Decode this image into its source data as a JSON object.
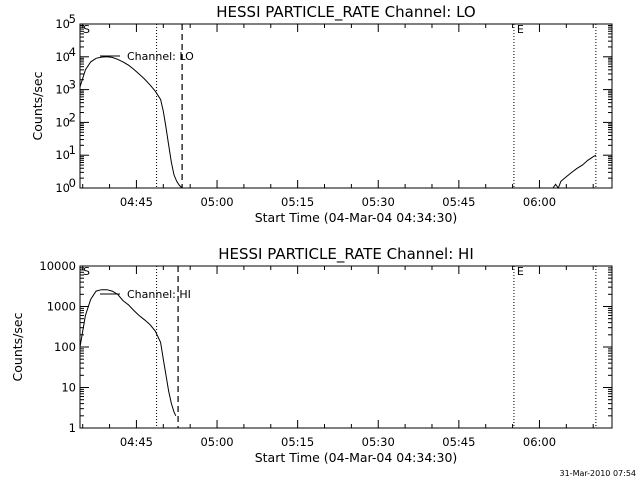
{
  "footer": {
    "timestamp": "31-Mar-2010 07:54"
  },
  "chart_data": [
    {
      "type": "line",
      "title": "HESSI PARTICLE_RATE Channel: LO",
      "xlabel": "Start Time (04-Mar-04 04:34:30)",
      "ylabel": "Counts/sec",
      "yscale": "log",
      "ylim": [
        1,
        100000
      ],
      "xlim": [
        "04:34:30",
        "06:13:30"
      ],
      "x_ticks": [
        "04:45",
        "05:00",
        "05:15",
        "05:30",
        "05:45",
        "06:00"
      ],
      "y_ticks": [
        {
          "value": 1,
          "mantissa": "10",
          "exp": "0"
        },
        {
          "value": 10,
          "mantissa": "10",
          "exp": "1"
        },
        {
          "value": 100,
          "mantissa": "10",
          "exp": "2"
        },
        {
          "value": 1000,
          "mantissa": "10",
          "exp": "3"
        },
        {
          "value": 10000,
          "mantissa": "10",
          "exp": "4"
        },
        {
          "value": 100000,
          "mantissa": "10",
          "exp": "5"
        }
      ],
      "legend": "Channel: LO",
      "markers": [
        {
          "label": "S",
          "time": "04:34:30",
          "style": "none"
        },
        {
          "label": "",
          "time": "04:48:45",
          "style": "dotted"
        },
        {
          "label": "",
          "time": "04:53:30",
          "style": "dashed"
        },
        {
          "label": "E",
          "time": "05:55:15",
          "style": "dotted"
        },
        {
          "label": "",
          "time": "06:10:30",
          "style": "dotted"
        }
      ],
      "series": [
        {
          "x": [
            "04:34:30",
            "04:35:30",
            "04:36:30",
            "04:37:30",
            "04:38:30",
            "04:39:30",
            "04:40:30",
            "04:41:30",
            "04:42:30",
            "04:43:30",
            "04:44:30",
            "04:45:30",
            "04:46:30",
            "04:47:30",
            "04:48:30",
            "04:49:30",
            "04:50:00",
            "04:50:30",
            "04:51:00",
            "04:51:30",
            "04:52:00",
            "04:52:30",
            "04:53:00",
            "04:53:30"
          ],
          "y": [
            1200,
            4000,
            7000,
            9000,
            9800,
            10000,
            9600,
            8400,
            7000,
            5600,
            4200,
            3000,
            2100,
            1400,
            900,
            500,
            220,
            70,
            20,
            6,
            2.5,
            1.6,
            1.2,
            1
          ]
        },
        {
          "x": [
            "06:02:30",
            "06:03:00",
            "06:03:30",
            "06:04:00",
            "06:05:00",
            "06:06:00",
            "06:07:00",
            "06:08:00",
            "06:09:00",
            "06:10:00",
            "06:10:30"
          ],
          "y": [
            1,
            1.3,
            1,
            1.6,
            2.2,
            3,
            4,
            5,
            7,
            9,
            10
          ]
        }
      ]
    },
    {
      "type": "line",
      "title": "HESSI PARTICLE_RATE Channel: HI",
      "xlabel": "Start Time (04-Mar-04 04:34:30)",
      "ylabel": "Counts/sec",
      "yscale": "log",
      "ylim": [
        1,
        10000
      ],
      "xlim": [
        "04:34:30",
        "06:13:30"
      ],
      "x_ticks": [
        "04:45",
        "05:00",
        "05:15",
        "05:30",
        "05:45",
        "06:00"
      ],
      "y_ticks": [
        {
          "value": 1,
          "label": "1"
        },
        {
          "value": 10,
          "label": "10"
        },
        {
          "value": 100,
          "label": "100"
        },
        {
          "value": 1000,
          "label": "1000"
        },
        {
          "value": 10000,
          "label": "10000"
        }
      ],
      "legend": "Channel: HI",
      "markers": [
        {
          "label": "S",
          "time": "04:34:30",
          "style": "none"
        },
        {
          "label": "",
          "time": "04:48:45",
          "style": "dotted"
        },
        {
          "label": "",
          "time": "04:52:45",
          "style": "dashed"
        },
        {
          "label": "E",
          "time": "05:55:15",
          "style": "dotted"
        },
        {
          "label": "",
          "time": "06:10:30",
          "style": "dotted"
        }
      ],
      "series": [
        {
          "x": [
            "04:34:30",
            "04:35:30",
            "04:36:30",
            "04:37:30",
            "04:38:30",
            "04:39:30",
            "04:40:30",
            "04:41:30",
            "04:42:30",
            "04:43:30",
            "04:44:30",
            "04:45:30",
            "04:46:30",
            "04:47:30",
            "04:48:30",
            "04:49:30",
            "04:50:00",
            "04:50:30",
            "04:51:00",
            "04:51:30",
            "04:52:00",
            "04:52:20"
          ],
          "y": [
            100,
            600,
            1500,
            2400,
            2600,
            2600,
            2400,
            2000,
            1400,
            1100,
            800,
            600,
            470,
            360,
            250,
            130,
            50,
            20,
            8,
            4,
            2.5,
            2
          ]
        }
      ]
    }
  ]
}
